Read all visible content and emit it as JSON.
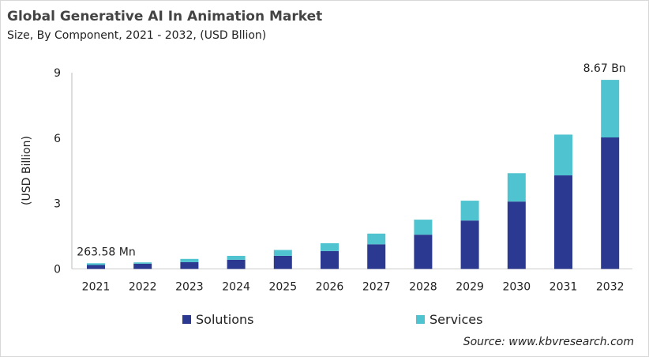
{
  "chart_data": {
    "type": "bar",
    "stacked": true,
    "title": "Global Generative AI In Animation Market",
    "subtitle": "Size, By Component, 2021 - 2032, (USD Bllion)",
    "xlabel": "",
    "ylabel": "(USD Billion)",
    "ylim": [
      0,
      9
    ],
    "yticks": [
      "0",
      "3",
      "6",
      "9"
    ],
    "categories": [
      "2021",
      "2022",
      "2023",
      "2024",
      "2025",
      "2026",
      "2027",
      "2028",
      "2029",
      "2030",
      "2031",
      "2032"
    ],
    "series": [
      {
        "name": "Solutions",
        "color": "#2b3990",
        "values": [
          0.18,
          0.24,
          0.31,
          0.42,
          0.6,
          0.82,
          1.13,
          1.57,
          2.22,
          3.09,
          4.29,
          6.03
        ]
      },
      {
        "name": "Services",
        "color": "#4fc3cf",
        "values": [
          0.08,
          0.06,
          0.15,
          0.18,
          0.27,
          0.36,
          0.49,
          0.69,
          0.91,
          1.3,
          1.87,
          2.64
        ]
      }
    ],
    "annotations": [
      {
        "category": "2021",
        "text": "263.58 Mn"
      },
      {
        "category": "2032",
        "text": "8.67 Bn"
      }
    ],
    "grid": false,
    "legend": "bottom"
  },
  "source": "Source: www.kbvresearch.com"
}
